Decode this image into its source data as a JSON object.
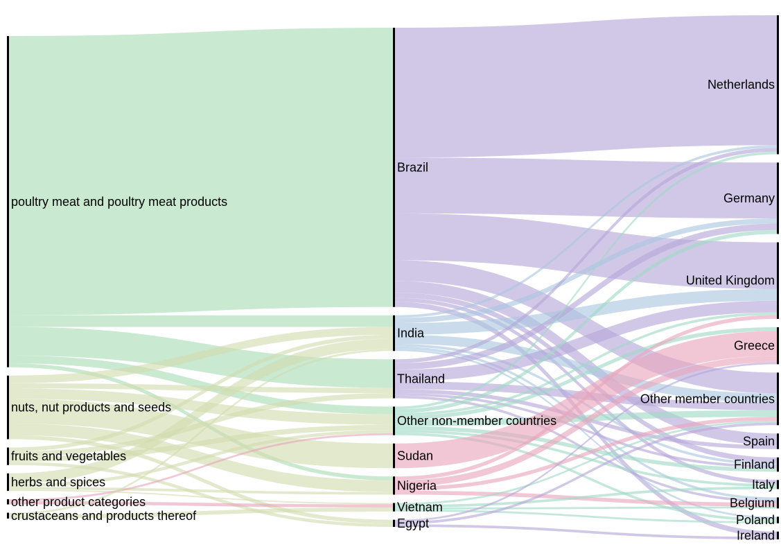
{
  "colors": {
    "green": "#a8dcb4",
    "tan": "#d2dcae",
    "red": "#e8a4bc",
    "purple": "#b5a6d8",
    "blue": "#a9c6de",
    "teal": "#9fd8c6",
    "grayblue": "#b4c4d4",
    "bar": "#000000"
  },
  "chart_data": {
    "type": "sankey",
    "columns": [
      {
        "name": "product_categories",
        "nodes": [
          {
            "id": "poultry",
            "label": "poultry meat and poultry meat products"
          },
          {
            "id": "nuts",
            "label": "nuts, nut products and seeds"
          },
          {
            "id": "fruits",
            "label": "fruits and vegetables"
          },
          {
            "id": "herbs",
            "label": "herbs and spices"
          },
          {
            "id": "otherprod",
            "label": "other product categories"
          },
          {
            "id": "crust",
            "label": "crustaceans and products thereof"
          }
        ]
      },
      {
        "name": "origin_countries",
        "nodes": [
          {
            "id": "brazil",
            "label": "Brazil"
          },
          {
            "id": "india",
            "label": "India"
          },
          {
            "id": "thailand",
            "label": "Thailand"
          },
          {
            "id": "othernm",
            "label": "Other non-member countries"
          },
          {
            "id": "sudan",
            "label": "Sudan"
          },
          {
            "id": "nigeria",
            "label": "Nigeria"
          },
          {
            "id": "vietnam",
            "label": "Vietnam"
          },
          {
            "id": "egypt",
            "label": "Egypt"
          }
        ]
      },
      {
        "name": "notifying_countries",
        "nodes": [
          {
            "id": "nl",
            "label": "Netherlands"
          },
          {
            "id": "de",
            "label": "Germany"
          },
          {
            "id": "uk",
            "label": "United Kingdom"
          },
          {
            "id": "gr",
            "label": "Greece"
          },
          {
            "id": "othermem",
            "label": "Other member countries"
          },
          {
            "id": "es",
            "label": "Spain"
          },
          {
            "id": "fi",
            "label": "Finland"
          },
          {
            "id": "it",
            "label": "Italy"
          },
          {
            "id": "be",
            "label": "Belgium"
          },
          {
            "id": "pl",
            "label": "Poland"
          },
          {
            "id": "ie",
            "label": "Ireland"
          }
        ]
      }
    ],
    "links": [
      {
        "source": "poultry",
        "target": "brazil",
        "value": 430,
        "color": "green"
      },
      {
        "source": "poultry",
        "target": "india",
        "value": 18,
        "color": "green"
      },
      {
        "source": "poultry",
        "target": "thailand",
        "value": 44,
        "color": "green"
      },
      {
        "source": "poultry",
        "target": "othernm",
        "value": 12,
        "color": "green"
      },
      {
        "source": "poultry",
        "target": "nigeria",
        "value": 6,
        "color": "green"
      },
      {
        "source": "nuts",
        "target": "india",
        "value": 12,
        "color": "tan"
      },
      {
        "source": "nuts",
        "target": "thailand",
        "value": 8,
        "color": "tan"
      },
      {
        "source": "nuts",
        "target": "othernm",
        "value": 16,
        "color": "tan"
      },
      {
        "source": "nuts",
        "target": "sudan",
        "value": 38,
        "color": "tan"
      },
      {
        "source": "nuts",
        "target": "nigeria",
        "value": 18,
        "color": "tan"
      },
      {
        "source": "nuts",
        "target": "egypt",
        "value": 6,
        "color": "tan"
      },
      {
        "source": "fruits",
        "target": "india",
        "value": 6,
        "color": "tan"
      },
      {
        "source": "fruits",
        "target": "thailand",
        "value": 8,
        "color": "tan"
      },
      {
        "source": "fruits",
        "target": "othernm",
        "value": 8,
        "color": "tan"
      },
      {
        "source": "fruits",
        "target": "egypt",
        "value": 5,
        "color": "tan"
      },
      {
        "source": "herbs",
        "target": "india",
        "value": 16,
        "color": "tan"
      },
      {
        "source": "herbs",
        "target": "othernm",
        "value": 5,
        "color": "tan"
      },
      {
        "source": "herbs",
        "target": "nigeria",
        "value": 4,
        "color": "tan"
      },
      {
        "source": "herbs",
        "target": "vietnam",
        "value": 2,
        "color": "tan"
      },
      {
        "source": "otherprod",
        "target": "vietnam",
        "value": 5,
        "color": "red"
      },
      {
        "source": "otherprod",
        "target": "othernm",
        "value": 3,
        "color": "red"
      },
      {
        "source": "crust",
        "target": "vietnam",
        "value": 6,
        "color": "tan"
      },
      {
        "source": "crust",
        "target": "india",
        "value": 3,
        "color": "tan"
      },
      {
        "source": "brazil",
        "target": "nl",
        "value": 200,
        "color": "purple"
      },
      {
        "source": "brazil",
        "target": "de",
        "value": 86,
        "color": "purple"
      },
      {
        "source": "brazil",
        "target": "uk",
        "value": 72,
        "color": "purple"
      },
      {
        "source": "brazil",
        "target": "othermem",
        "value": 32,
        "color": "purple"
      },
      {
        "source": "brazil",
        "target": "es",
        "value": 18,
        "color": "purple"
      },
      {
        "source": "brazil",
        "target": "fi",
        "value": 8,
        "color": "purple"
      },
      {
        "source": "brazil",
        "target": "it",
        "value": 6,
        "color": "purple"
      },
      {
        "source": "brazil",
        "target": "ie",
        "value": 8,
        "color": "purple"
      },
      {
        "source": "india",
        "target": "nl",
        "value": 4,
        "color": "blue"
      },
      {
        "source": "india",
        "target": "de",
        "value": 8,
        "color": "blue"
      },
      {
        "source": "india",
        "target": "uk",
        "value": 18,
        "color": "blue"
      },
      {
        "source": "india",
        "target": "othermem",
        "value": 14,
        "color": "blue"
      },
      {
        "source": "india",
        "target": "fi",
        "value": 4,
        "color": "blue"
      },
      {
        "source": "india",
        "target": "be",
        "value": 4,
        "color": "blue"
      },
      {
        "source": "india",
        "target": "pl",
        "value": 3,
        "color": "blue"
      },
      {
        "source": "thailand",
        "target": "nl",
        "value": 6,
        "color": "purple"
      },
      {
        "source": "thailand",
        "target": "de",
        "value": 10,
        "color": "purple"
      },
      {
        "source": "thailand",
        "target": "uk",
        "value": 18,
        "color": "purple"
      },
      {
        "source": "thailand",
        "target": "othermem",
        "value": 12,
        "color": "purple"
      },
      {
        "source": "thailand",
        "target": "es",
        "value": 6,
        "color": "purple"
      },
      {
        "source": "thailand",
        "target": "fi",
        "value": 4,
        "color": "purple"
      },
      {
        "source": "thailand",
        "target": "be",
        "value": 4,
        "color": "purple"
      },
      {
        "source": "othernm",
        "target": "nl",
        "value": 4,
        "color": "teal"
      },
      {
        "source": "othernm",
        "target": "de",
        "value": 6,
        "color": "teal"
      },
      {
        "source": "othernm",
        "target": "uk",
        "value": 4,
        "color": "teal"
      },
      {
        "source": "othernm",
        "target": "gr",
        "value": 6,
        "color": "teal"
      },
      {
        "source": "othernm",
        "target": "othermem",
        "value": 10,
        "color": "teal"
      },
      {
        "source": "othernm",
        "target": "fi",
        "value": 6,
        "color": "teal"
      },
      {
        "source": "othernm",
        "target": "it",
        "value": 4,
        "color": "teal"
      },
      {
        "source": "othernm",
        "target": "pl",
        "value": 4,
        "color": "teal"
      },
      {
        "source": "sudan",
        "target": "gr",
        "value": 38,
        "color": "red"
      },
      {
        "source": "nigeria",
        "target": "uk",
        "value": 6,
        "color": "red"
      },
      {
        "source": "nigeria",
        "target": "othermem",
        "value": 6,
        "color": "red"
      },
      {
        "source": "nigeria",
        "target": "be",
        "value": 6,
        "color": "red"
      },
      {
        "source": "nigeria",
        "target": "gr",
        "value": 10,
        "color": "red"
      },
      {
        "source": "vietnam",
        "target": "it",
        "value": 4,
        "color": "teal"
      },
      {
        "source": "vietnam",
        "target": "be",
        "value": 3,
        "color": "teal"
      },
      {
        "source": "vietnam",
        "target": "othermem",
        "value": 3,
        "color": "teal"
      },
      {
        "source": "vietnam",
        "target": "pl",
        "value": 3,
        "color": "teal"
      },
      {
        "source": "egypt",
        "target": "othermem",
        "value": 4,
        "color": "purple"
      },
      {
        "source": "egypt",
        "target": "gr",
        "value": 3,
        "color": "purple"
      },
      {
        "source": "egypt",
        "target": "ie",
        "value": 4,
        "color": "purple"
      }
    ]
  }
}
